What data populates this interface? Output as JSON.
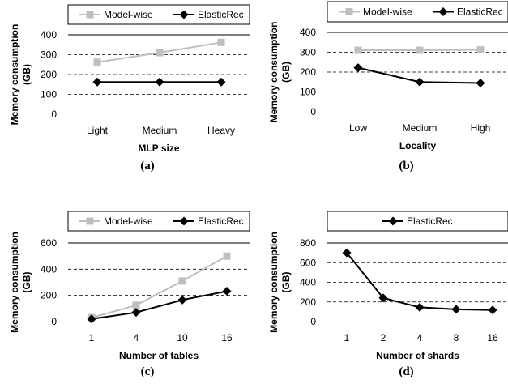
{
  "chart_data": [
    {
      "type": "line",
      "panel_label": "(a)",
      "xlabel": "MLP size",
      "ylabel": "Memory consumption (GB)",
      "categories": [
        "Light",
        "Medium",
        "Heavy"
      ],
      "ylim": [
        0,
        400
      ],
      "yticks": [
        0,
        100,
        200,
        300,
        400
      ],
      "grid": true,
      "legend_position": "top",
      "series": [
        {
          "name": "Model-wise",
          "color": "#bfbfbf",
          "marker": "square",
          "values": [
            262,
            310,
            362
          ]
        },
        {
          "name": "ElasticRec",
          "color": "#000000",
          "marker": "diamond",
          "values": [
            162,
            162,
            162
          ]
        }
      ]
    },
    {
      "type": "line",
      "panel_label": "(b)",
      "xlabel": "Locality",
      "ylabel": "Memory consumption (GB)",
      "categories": [
        "Low",
        "Medium",
        "High"
      ],
      "ylim": [
        0,
        400
      ],
      "yticks": [
        0,
        100,
        200,
        300,
        400
      ],
      "grid": true,
      "legend_position": "top",
      "series": [
        {
          "name": "Model-wise",
          "color": "#bfbfbf",
          "marker": "square",
          "values": [
            310,
            310,
            312
          ]
        },
        {
          "name": "ElasticRec",
          "color": "#000000",
          "marker": "diamond",
          "values": [
            222,
            150,
            145
          ]
        }
      ]
    },
    {
      "type": "line",
      "panel_label": "(c)",
      "xlabel": "Number of tables",
      "ylabel": "Memory consumption (GB)",
      "categories": [
        "1",
        "4",
        "10",
        "16"
      ],
      "ylim": [
        0,
        600
      ],
      "yticks": [
        0,
        200,
        400,
        600
      ],
      "grid": true,
      "legend_position": "top",
      "series": [
        {
          "name": "Model-wise",
          "color": "#bfbfbf",
          "marker": "square",
          "values": [
            30,
            125,
            310,
            500
          ]
        },
        {
          "name": "ElasticRec",
          "color": "#000000",
          "marker": "diamond",
          "values": [
            20,
            70,
            165,
            232
          ]
        }
      ]
    },
    {
      "type": "line",
      "panel_label": "(d)",
      "xlabel": "Number of shards",
      "ylabel": "Memory consumption (GB)",
      "categories": [
        "1",
        "2",
        "4",
        "8",
        "16"
      ],
      "ylim": [
        0,
        800
      ],
      "yticks": [
        0,
        200,
        400,
        600,
        800
      ],
      "grid": true,
      "legend_position": "top",
      "series": [
        {
          "name": "ElasticRec",
          "color": "#000000",
          "marker": "diamond",
          "values": [
            700,
            240,
            145,
            125,
            118
          ]
        }
      ]
    }
  ]
}
